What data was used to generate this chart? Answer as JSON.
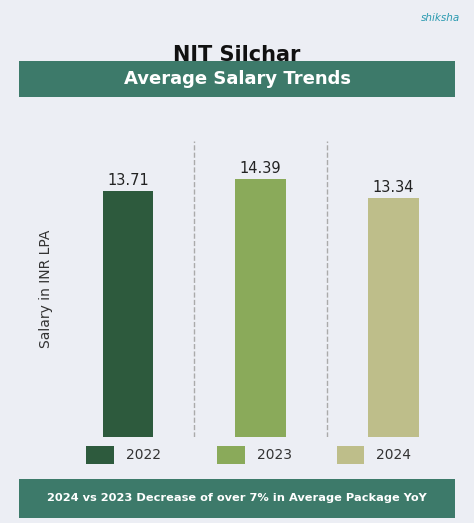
{
  "title": "NIT Silchar",
  "subtitle": "Average Salary Trends",
  "categories": [
    "2022",
    "2023",
    "2024"
  ],
  "values": [
    13.71,
    14.39,
    13.34
  ],
  "bar_colors": [
    "#2d5a3d",
    "#8aaa5a",
    "#bebe8a"
  ],
  "bar_width": 0.38,
  "ylabel": "Salary in INR LPA",
  "ylim": [
    0,
    16.5
  ],
  "background_color": "#eceef4",
  "header_bg_color": "#3d7a6a",
  "header_text_color": "#ffffff",
  "footer_bg_color": "#3d7a6a",
  "footer_text": "2024 vs 2023 Decrease of over 7% in Average Package YoY",
  "footer_text_color": "#ffffff",
  "title_fontsize": 15,
  "subtitle_fontsize": 13,
  "label_fontsize": 10,
  "value_fontsize": 10.5,
  "legend_fontsize": 10,
  "dashed_line_color": "#aaaaaa"
}
